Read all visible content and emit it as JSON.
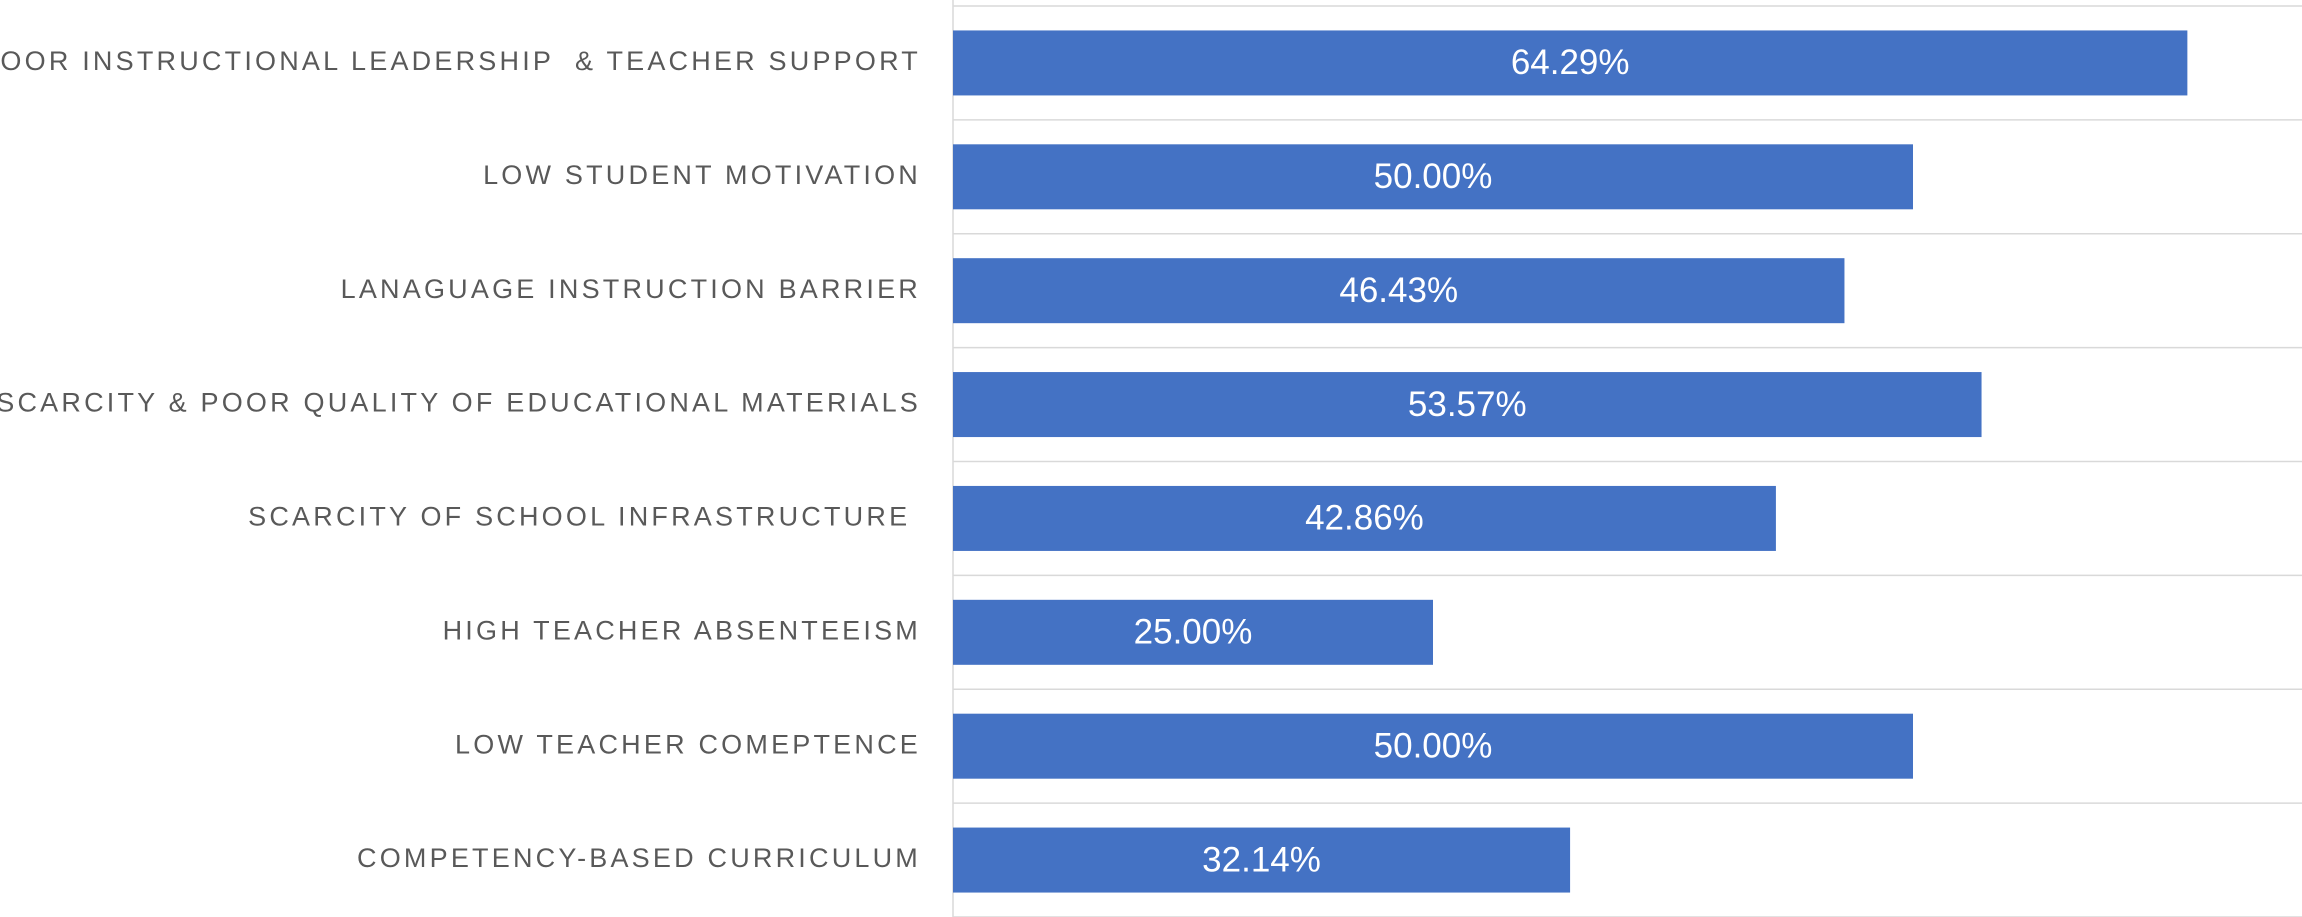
{
  "chart_data": {
    "type": "bar",
    "orientation": "horizontal",
    "categories": [
      "POOR INSTRUCTIONAL LEADERSHIP  & TEACHER SUPPORT",
      "LOW STUDENT MOTIVATION",
      "LANAGUAGE INSTRUCTION BARRIER",
      "SCARCITY & POOR QUALITY OF EDUCATIONAL MATERIALS",
      "SCARCITY OF SCHOOL INFRASTRUCTURE ",
      "HIGH TEACHER ABSENTEEISM",
      "LOW TEACHER COMEPTENCE",
      "COMPETENCY-BASED CURRICULUM"
    ],
    "values": [
      64.29,
      50.0,
      46.43,
      53.57,
      42.86,
      25.0,
      50.0,
      32.14
    ],
    "value_labels": [
      "64.29%",
      "50.00%",
      "46.43%",
      "53.57%",
      "42.86%",
      "25.00%",
      "50.00%",
      "32.14%"
    ],
    "color": "#4472c4",
    "xlim": [
      0,
      70
    ]
  }
}
